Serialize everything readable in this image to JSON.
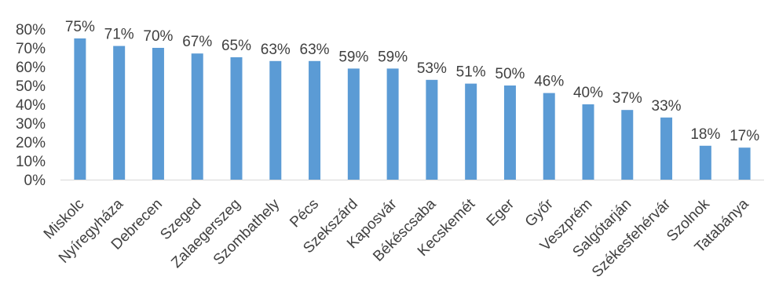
{
  "chart_data": {
    "type": "bar",
    "title": "",
    "xlabel": "",
    "ylabel": "",
    "categories": [
      "Miskolc",
      "Nyíregyháza",
      "Debrecen",
      "Szeged",
      "Zalaegerszeg",
      "Szombathely",
      "Pécs",
      "Szekszárd",
      "Kaposvár",
      "Békéscsaba",
      "Kecskemét",
      "Eger",
      "Győr",
      "Veszprém",
      "Salgótarján",
      "Székesfehérvár",
      "Szolnok",
      "Tatabánya"
    ],
    "values": [
      75,
      71,
      70,
      67,
      65,
      63,
      63,
      59,
      59,
      53,
      51,
      50,
      46,
      40,
      37,
      33,
      18,
      17
    ],
    "data_labels": [
      "75%",
      "71%",
      "70%",
      "67%",
      "65%",
      "63%",
      "63%",
      "59%",
      "59%",
      "53%",
      "51%",
      "50%",
      "46%",
      "40%",
      "37%",
      "33%",
      "18%",
      "17%"
    ],
    "ylim": [
      0,
      80
    ],
    "yticks": [
      0,
      10,
      20,
      30,
      40,
      50,
      60,
      70,
      80
    ],
    "ytick_labels": [
      "0%",
      "10%",
      "20%",
      "30%",
      "40%",
      "50%",
      "60%",
      "70%",
      "80%"
    ],
    "grid": false,
    "legend": "none",
    "colors": {
      "bar": "#5B9BD5",
      "axis": "#D9D9D9",
      "text": "#404040"
    }
  }
}
